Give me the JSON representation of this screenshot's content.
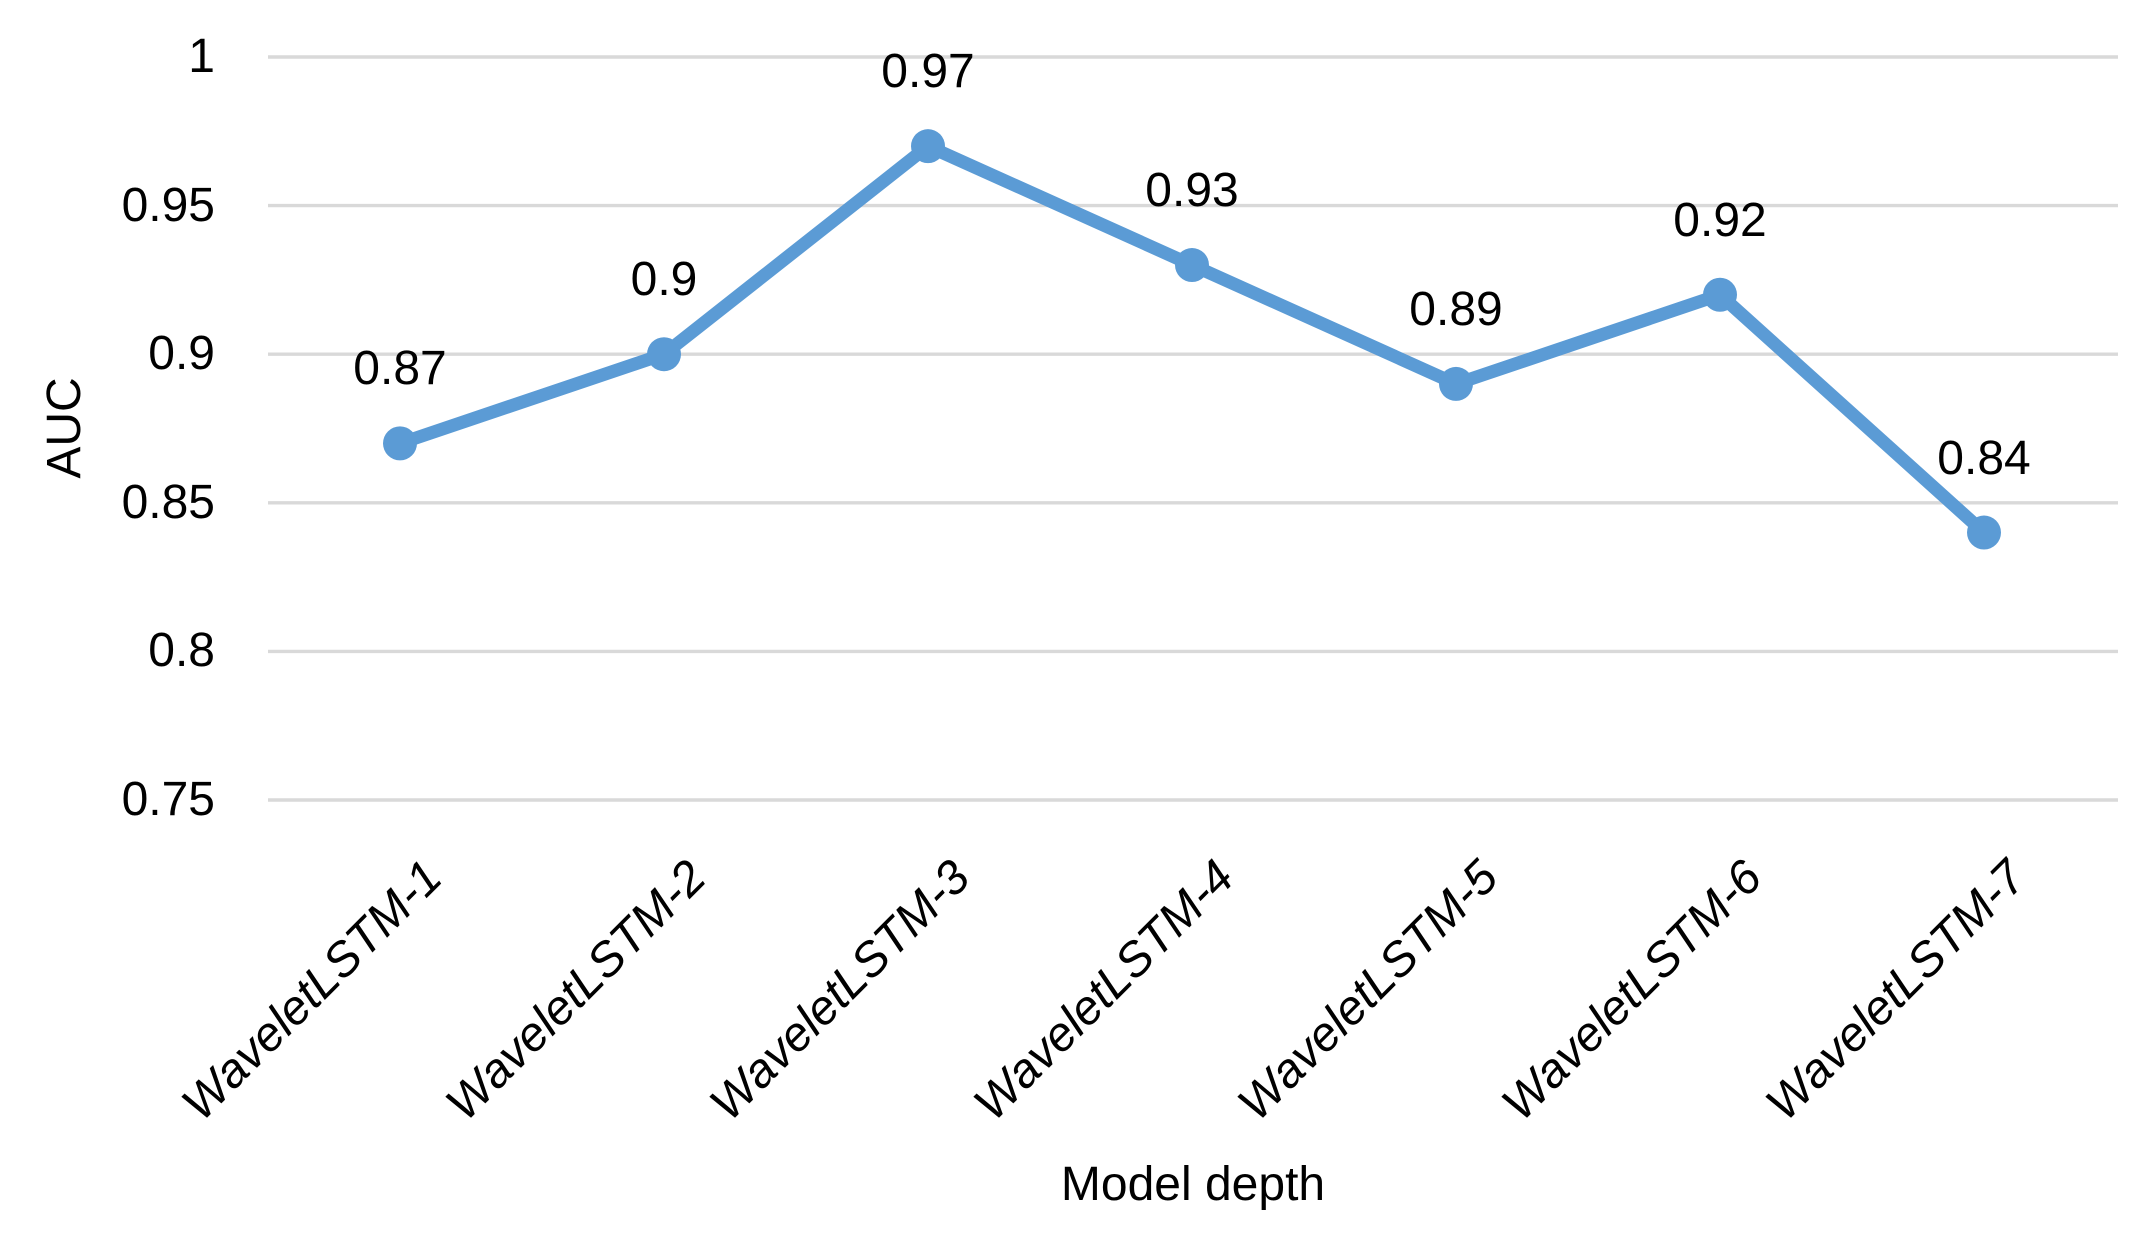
{
  "chart_data": {
    "type": "line",
    "categories": [
      "WaveletLSTM-1",
      "WaveletLSTM-2",
      "WaveletLSTM-3",
      "WaveletLSTM-4",
      "WaveletLSTM-5",
      "WaveletLSTM-6",
      "WaveletLSTM-7"
    ],
    "values": [
      0.87,
      0.9,
      0.97,
      0.93,
      0.89,
      0.92,
      0.84
    ],
    "data_labels": [
      "0.87",
      "0.9",
      "0.97",
      "0.93",
      "0.89",
      "0.92",
      "0.84"
    ],
    "title": "",
    "xlabel": "Model depth",
    "ylabel": "AUC",
    "ylim": [
      0.75,
      1
    ],
    "yticks": [
      1,
      0.95,
      0.9,
      0.85,
      0.8,
      0.75
    ],
    "ytick_labels": [
      "1",
      "0.95",
      "0.9",
      "0.85",
      "0.8",
      "0.75"
    ],
    "grid": "horizontal",
    "legend": "none",
    "line_color": "#5B9BD5",
    "marker_color": "#5B9BD5",
    "gridline_color": "#D9D9D9",
    "text_color": "#000000",
    "background_color": "#FFFFFF"
  }
}
